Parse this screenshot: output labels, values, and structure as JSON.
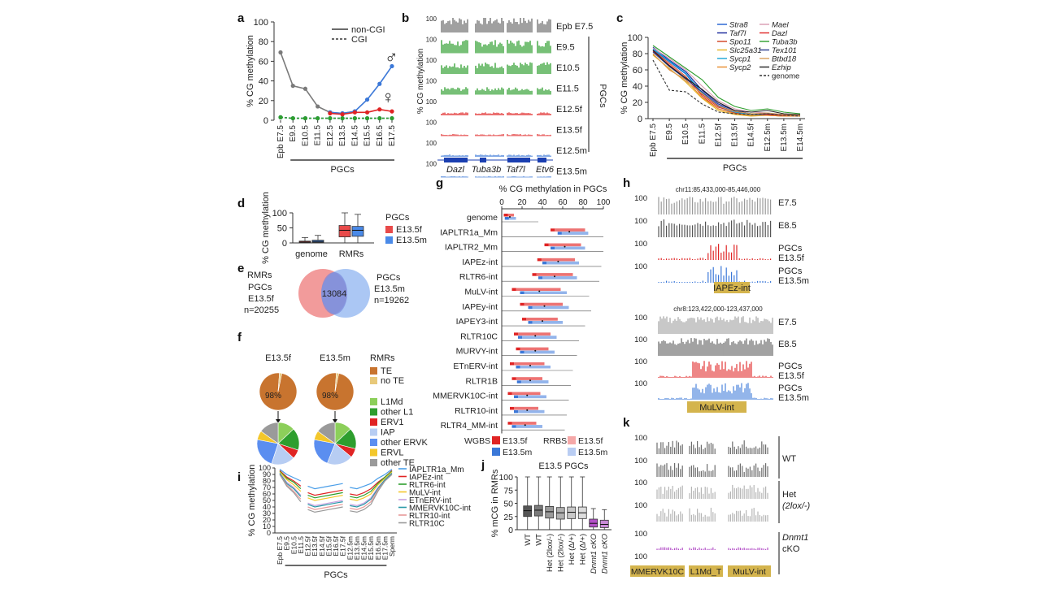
{
  "figure": {
    "panels": {
      "a": "a",
      "b": "b",
      "c": "c",
      "d": "d",
      "e": "e",
      "f": "f",
      "g": "g",
      "h": "h",
      "i": "i",
      "j": "j",
      "k": "k"
    },
    "colors": {
      "male": "#3b78d8",
      "female": "#e02424",
      "green": "#2e9e2e",
      "gray": "#6d6d6d",
      "purple": "#a437b8",
      "tan": "#d4b44d",
      "orange": "#c87533"
    }
  },
  "chart_data": [
    {
      "id": "a",
      "type": "line",
      "ylabel": "% CG methylation",
      "x": [
        "Epb E7.5",
        "E9.5",
        "E10.5",
        "E11.5",
        "E12.5",
        "E13.5",
        "E14.5",
        "E15.5",
        "E16.5",
        "E17.5"
      ],
      "xgroup_label": "PGCs",
      "ylim": [
        0,
        100
      ],
      "yticks": [
        0,
        20,
        40,
        60,
        80,
        100
      ],
      "legend": [
        "non-CGI",
        "CGI"
      ],
      "symbols": {
        "male": "♂",
        "female": "♀"
      },
      "series": [
        {
          "values": [
            69,
            35,
            32,
            14,
            8,
            7,
            9,
            null,
            null,
            null
          ],
          "color": "#7a7a7a",
          "style": "solid"
        },
        {
          "values": [
            null,
            null,
            null,
            null,
            8,
            7,
            9,
            21,
            37,
            55
          ],
          "color": "#3b78d8",
          "style": "solid"
        },
        {
          "values": [
            null,
            null,
            null,
            null,
            7,
            6,
            8,
            8,
            11,
            9
          ],
          "color": "#e02424",
          "style": "solid"
        },
        {
          "values": [
            3,
            2,
            2,
            2,
            2,
            2,
            2,
            2,
            2,
            2
          ],
          "color": "#3b78d8",
          "style": "dashed"
        },
        {
          "values": [
            3,
            2,
            2,
            2,
            2,
            2,
            2,
            2,
            2,
            2
          ],
          "color": "#2e9e2e",
          "style": "dashed"
        }
      ]
    },
    {
      "id": "b",
      "type": "tracks",
      "ylabel": "% CG methylation",
      "track_max": "100",
      "tracks": [
        {
          "label": "Epb E7.5",
          "color": "#6d6d6d",
          "level": 0.95
        },
        {
          "label": "E9.5",
          "color": "#2e9e2e",
          "level": 0.8
        },
        {
          "label": "E10.5",
          "color": "#2e9e2e",
          "level": 0.7
        },
        {
          "label": "E11.5",
          "color": "#2e9e2e",
          "level": 0.45
        },
        {
          "label": "E12.5f",
          "color": "#e02424",
          "level": 0.18
        },
        {
          "label": "E13.5f",
          "color": "#e02424",
          "level": 0.12
        },
        {
          "label": "E12.5m",
          "color": "#3b78d8",
          "level": 0.14
        },
        {
          "label": "E13.5m",
          "color": "#3b78d8",
          "level": 0.08
        }
      ],
      "group_label": "PGCs",
      "genes": [
        "Dazl",
        "Tuba3b",
        "Taf7l",
        "Etv6"
      ]
    },
    {
      "id": "c",
      "type": "line",
      "ylabel": "% CG methylation",
      "x": [
        "Epb E7.5",
        "E9.5",
        "E10.5",
        "E11.5",
        "E12.5f",
        "E13.5f",
        "E14.5f",
        "E12.5m",
        "E13.5m",
        "E14.5m"
      ],
      "xgroup_label": "PGCs",
      "ylim": [
        0,
        100
      ],
      "yticks": [
        0,
        20,
        40,
        60,
        80,
        100
      ],
      "series": [
        {
          "name": "Stra8",
          "color": "#1f5fd1",
          "values": [
            85,
            70,
            55,
            30,
            15,
            8,
            5,
            5,
            4,
            4
          ]
        },
        {
          "name": "Taf7l",
          "color": "#13239a",
          "values": [
            88,
            72,
            58,
            35,
            18,
            10,
            6,
            6,
            5,
            4
          ]
        },
        {
          "name": "Spo11",
          "color": "#d1401f",
          "values": [
            84,
            68,
            52,
            28,
            12,
            7,
            4,
            4,
            3,
            3
          ]
        },
        {
          "name": "Slc25a31",
          "color": "#e6b422",
          "values": [
            78,
            62,
            45,
            25,
            10,
            5,
            3,
            4,
            3,
            3
          ]
        },
        {
          "name": "Sycp1",
          "color": "#19a5d6",
          "values": [
            86,
            71,
            56,
            32,
            14,
            8,
            5,
            5,
            4,
            3
          ]
        },
        {
          "name": "Sycp2",
          "color": "#e88a2a",
          "values": [
            80,
            60,
            48,
            26,
            12,
            6,
            4,
            4,
            3,
            3
          ]
        },
        {
          "name": "Mael",
          "color": "#d99bb0",
          "values": [
            87,
            74,
            60,
            40,
            22,
            12,
            8,
            7,
            5,
            4
          ]
        },
        {
          "name": "Dazl",
          "color": "#e02424",
          "values": [
            83,
            66,
            50,
            30,
            14,
            9,
            6,
            5,
            4,
            4
          ]
        },
        {
          "name": "Tuba3b",
          "color": "#2e9e2e",
          "values": [
            90,
            76,
            62,
            48,
            26,
            15,
            10,
            12,
            8,
            6
          ]
        },
        {
          "name": "Tex101",
          "color": "#2b3a8c",
          "values": [
            82,
            64,
            49,
            33,
            16,
            9,
            6,
            6,
            5,
            4
          ]
        },
        {
          "name": "Btbd18",
          "color": "#d8a05a",
          "values": [
            79,
            61,
            46,
            31,
            15,
            9,
            6,
            7,
            5,
            4
          ]
        },
        {
          "name": "Ezhip",
          "color": "#222222",
          "values": [
            84,
            65,
            50,
            36,
            20,
            10,
            8,
            10,
            6,
            5
          ]
        },
        {
          "name": "genome",
          "color": "#333333",
          "dashed": true,
          "values": [
            72,
            35,
            33,
            18,
            8,
            6,
            5,
            6,
            4,
            3
          ]
        }
      ]
    },
    {
      "id": "d",
      "type": "boxplot",
      "ylabel": "% CG methylation",
      "ylim": [
        0,
        100
      ],
      "yticks": [
        0,
        50,
        100
      ],
      "categories": [
        "genome",
        "RMRs"
      ],
      "legend_title": "PGCs",
      "series": [
        {
          "name": "E13.5f",
          "color": "#e84a4a",
          "boxes": [
            {
              "min": 0,
              "q1": 1,
              "median": 3,
              "q3": 6,
              "max": 18
            },
            {
              "min": 0,
              "q1": 20,
              "median": 42,
              "q3": 58,
              "max": 100
            }
          ]
        },
        {
          "name": "E13.5m",
          "color": "#4a8ae8",
          "boxes": [
            {
              "min": 0,
              "q1": 2,
              "median": 5,
              "q3": 9,
              "max": 25
            },
            {
              "min": 0,
              "q1": 22,
              "median": 42,
              "q3": 55,
              "max": 95
            }
          ]
        }
      ]
    },
    {
      "id": "e",
      "type": "venn",
      "title": "RMRs",
      "left": {
        "label": "PGCs",
        "sub": "E13.5f",
        "n": "n=20255",
        "color": "#f08a8a"
      },
      "right": {
        "label": "PGCs",
        "sub": "E13.5m",
        "n": "n=19262",
        "color": "#8fb4f0"
      },
      "overlap": "13084"
    },
    {
      "id": "f",
      "type": "pie",
      "title": "RMRs",
      "pies": [
        {
          "title": "E13.5f",
          "te_pct": 98,
          "label": "98%"
        },
        {
          "title": "E13.5m",
          "te_pct": 98,
          "label": "98%"
        }
      ],
      "legend_top": [
        {
          "name": "TE",
          "color": "#c8742f"
        },
        {
          "name": "no TE",
          "color": "#e8c97a"
        }
      ],
      "legend_sub": [
        {
          "name": "L1Md",
          "color": "#8ccf5a"
        },
        {
          "name": "other L1",
          "color": "#2e9e2e"
        },
        {
          "name": "ERV1",
          "color": "#e02424"
        },
        {
          "name": "IAP",
          "color": "#b7cdf3"
        },
        {
          "name": "other ERVK",
          "color": "#5b8ef0"
        },
        {
          "name": "ERVL",
          "color": "#f3c72b"
        },
        {
          "name": "other TE",
          "color": "#9a9a9a"
        }
      ],
      "sub_f": [
        13,
        17,
        7,
        18,
        23,
        7,
        15
      ],
      "sub_m": [
        13,
        16,
        7,
        20,
        22,
        7,
        15
      ]
    },
    {
      "id": "g",
      "type": "range",
      "title": "% CG methylation in PGCs",
      "xlim": [
        0,
        100
      ],
      "xticks": [
        0,
        20,
        40,
        60,
        80,
        100
      ],
      "rows": [
        {
          "name": "genome",
          "f": [
            2,
            12
          ],
          "m": [
            3,
            14
          ]
        },
        {
          "name": "IAPLTR1a_Mm",
          "f": [
            48,
            82
          ],
          "m": [
            55,
            85
          ]
        },
        {
          "name": "IAPLTR2_Mm",
          "f": [
            42,
            78
          ],
          "m": [
            48,
            82
          ]
        },
        {
          "name": "IAPEz-int",
          "f": [
            35,
            72
          ],
          "m": [
            40,
            76
          ]
        },
        {
          "name": "RLTR6-int",
          "f": [
            30,
            70
          ],
          "m": [
            36,
            74
          ]
        },
        {
          "name": "MuLV-int",
          "f": [
            10,
            58
          ],
          "m": [
            18,
            64
          ]
        },
        {
          "name": "IAPEy-int",
          "f": [
            18,
            60
          ],
          "m": [
            26,
            66
          ]
        },
        {
          "name": "IAPEY3-int",
          "f": [
            20,
            55
          ],
          "m": [
            26,
            60
          ]
        },
        {
          "name": "RLTR10C",
          "f": [
            12,
            48
          ],
          "m": [
            16,
            54
          ]
        },
        {
          "name": "MURVY-int",
          "f": [
            14,
            46
          ],
          "m": [
            18,
            52
          ]
        },
        {
          "name": "ETnERV-int",
          "f": [
            8,
            42
          ],
          "m": [
            14,
            48
          ]
        },
        {
          "name": "RLTR1B",
          "f": [
            10,
            40
          ],
          "m": [
            15,
            46
          ]
        },
        {
          "name": "MMERVK10C-int",
          "f": [
            6,
            38
          ],
          "m": [
            12,
            44
          ]
        },
        {
          "name": "RLTR10-int",
          "f": [
            8,
            36
          ],
          "m": [
            12,
            42
          ]
        },
        {
          "name": "RLTR4_MM-int",
          "f": [
            6,
            34
          ],
          "m": [
            10,
            40
          ]
        }
      ],
      "legend": {
        "wgbs": "WGBS",
        "rrbs": "RRBS",
        "f": "E13.5f",
        "m": "E13.5m"
      }
    },
    {
      "id": "h",
      "type": "tracks",
      "regions": [
        {
          "coord": "chr11:85,433,000-85,446,000",
          "label": "IAPEz-int"
        },
        {
          "coord": "chr8:123,422,000-123,437,000",
          "label": "MuLV-int"
        }
      ],
      "track_max": "100",
      "tracks": [
        "E7.5",
        "E8.5",
        "PGCs E13.5f",
        "PGCs E13.5m"
      ],
      "track_labels": [
        [
          "E7.5"
        ],
        [
          "E8.5"
        ],
        [
          "PGCs",
          "E13.5f"
        ],
        [
          "PGCs",
          "E13.5m"
        ]
      ]
    },
    {
      "id": "i",
      "type": "line",
      "ylabel": "% CG methylation",
      "ylim": [
        0,
        100
      ],
      "yticks": [
        0,
        10,
        20,
        30,
        40,
        50,
        60,
        70,
        80,
        90,
        100
      ],
      "x": [
        "Epb E7.5",
        "E9.5",
        "E10.5",
        "E11.5",
        "E12.5f",
        "E13.5f",
        "E14.5f",
        "E15.5f",
        "E16.5f",
        "E17.5f",
        "E12.5m",
        "E13.5m",
        "E14.5m",
        "E15.5m",
        "E16.5m",
        "E17.5m",
        "Sperm"
      ],
      "xgroup_label": "PGCs",
      "series": [
        {
          "name": "IAPLTR1a_Mm",
          "color": "#4a9ee8",
          "values": [
            98,
            90,
            85,
            80,
            72,
            68,
            70,
            72,
            74,
            76,
            70,
            68,
            72,
            76,
            84,
            90,
            98
          ]
        },
        {
          "name": "IAPEz-int",
          "color": "#e02424",
          "values": [
            96,
            86,
            80,
            72,
            62,
            58,
            60,
            62,
            64,
            66,
            60,
            58,
            62,
            68,
            78,
            86,
            96
          ]
        },
        {
          "name": "RLTR6-int",
          "color": "#2e9e2e",
          "values": [
            95,
            84,
            78,
            68,
            58,
            54,
            56,
            58,
            60,
            62,
            56,
            54,
            58,
            64,
            76,
            86,
            95
          ]
        },
        {
          "name": "MuLV-int",
          "color": "#f3c72b",
          "values": [
            94,
            82,
            74,
            64,
            54,
            50,
            52,
            54,
            56,
            58,
            52,
            50,
            54,
            60,
            74,
            84,
            94
          ]
        },
        {
          "name": "ETnERV-int",
          "color": "#c6a0e0",
          "values": [
            92,
            78,
            70,
            58,
            46,
            42,
            44,
            46,
            48,
            50,
            44,
            42,
            46,
            54,
            70,
            82,
            92
          ]
        },
        {
          "name": "MMERVK10C-int",
          "color": "#2a9aa8",
          "values": [
            92,
            76,
            68,
            56,
            44,
            40,
            42,
            44,
            46,
            48,
            42,
            40,
            44,
            52,
            68,
            82,
            92
          ]
        },
        {
          "name": "RLTR10-int",
          "color": "#e89a9a",
          "values": [
            90,
            74,
            64,
            52,
            40,
            36,
            38,
            40,
            42,
            44,
            38,
            36,
            40,
            48,
            66,
            80,
            90
          ]
        },
        {
          "name": "RLTR10C",
          "color": "#9a9a9a",
          "values": [
            90,
            72,
            62,
            48,
            36,
            32,
            34,
            36,
            38,
            40,
            34,
            32,
            36,
            44,
            64,
            80,
            90
          ]
        }
      ]
    },
    {
      "id": "j",
      "type": "boxplot",
      "title": "E13.5 PGCs",
      "ylabel": "% mCG in RMRs",
      "ylim": [
        0,
        100
      ],
      "yticks": [
        0,
        25,
        50,
        75,
        100
      ],
      "categories": [
        "WT",
        "WT",
        "Het (2lox/-)",
        "Het (2lox/-)",
        "Het (Δ/+)",
        "Het (Δ/+)",
        "Dnmt1 cKO",
        "Dnmt1 cKO"
      ],
      "colors": [
        "#555555",
        "#7a7a7a",
        "#9a9a9a",
        "#b0b0b0",
        "#c8c8c8",
        "#dddddd",
        "#b34fc7",
        "#c88ad6"
      ],
      "boxes": [
        {
          "min": 0,
          "q1": 25,
          "median": 36,
          "q3": 45,
          "max": 100
        },
        {
          "min": 0,
          "q1": 26,
          "median": 37,
          "q3": 46,
          "max": 100
        },
        {
          "min": 0,
          "q1": 22,
          "median": 34,
          "q3": 44,
          "max": 100
        },
        {
          "min": 0,
          "q1": 20,
          "median": 32,
          "q3": 42,
          "max": 100
        },
        {
          "min": 0,
          "q1": 21,
          "median": 33,
          "q3": 43,
          "max": 100
        },
        {
          "min": 0,
          "q1": 21,
          "median": 32,
          "q3": 43,
          "max": 100
        },
        {
          "min": 0,
          "q1": 5,
          "median": 12,
          "q3": 20,
          "max": 40
        },
        {
          "min": 0,
          "q1": 4,
          "median": 10,
          "q3": 18,
          "max": 38
        }
      ]
    },
    {
      "id": "k",
      "type": "tracks",
      "track_max": "100",
      "groups": [
        {
          "label": "WT",
          "italic": "",
          "color": "#6d6d6d",
          "level": 0.75
        },
        {
          "label": "Het",
          "italic": "(2lox/-)",
          "color": "#b5b5b5",
          "level": 0.75
        },
        {
          "label": "cKO",
          "italic": "Dnmt1",
          "color": "#b34fc7",
          "level": 0.15
        }
      ],
      "elements": [
        "MMERVK10C",
        "L1Md_T",
        "MuLV-int"
      ]
    }
  ]
}
